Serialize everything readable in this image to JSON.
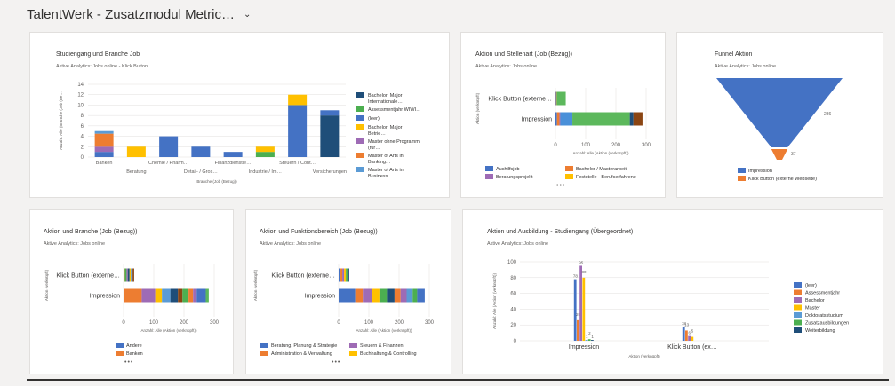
{
  "header": {
    "title": "TalentWerk - Zusatzmodul Metric…",
    "chevron_icon": "chevron-down-icon"
  },
  "cards": {
    "c1": {
      "title": "Studiengang und Branche Job",
      "subtitle": "Aktive Analytics: Jobs online - Klick Button"
    },
    "c2": {
      "title": "Aktion und Stellenart (Job (Bezug))",
      "subtitle": "Aktive Analytics: Jobs online"
    },
    "c3": {
      "title": "Funnel Aktion",
      "subtitle": "Aktive Analytics: Jobs online"
    },
    "c4": {
      "title": "Aktion und Branche (Job (Bezug))",
      "subtitle": "Aktive Analytics: Jobs online"
    },
    "c5": {
      "title": "Aktion und Funktionsbereich (Job (Bezug))",
      "subtitle": "Aktive Analytics: Jobs online"
    },
    "c6": {
      "title": "Aktion und Ausbildung - Studiengang (Übergeordnet)",
      "subtitle": "Aktive Analytics: Jobs online"
    }
  },
  "chart_data": [
    {
      "id": "c1",
      "type": "bar",
      "stacked": true,
      "title": "Studiengang und Branche Job",
      "xlabel": "Branche (Job (Bezug))",
      "ylabel": "Anzahl: Alle (Branche (Job (Be…",
      "ylim": [
        0,
        14
      ],
      "yticks": [
        0,
        2,
        4,
        6,
        8,
        10,
        12,
        14
      ],
      "categories": [
        "Banken",
        "Beratung",
        "Chemie / Pharm…",
        "Detail- / Gros…",
        "Finanzdienstle…",
        "Industrie / Im…",
        "Steuern / Cont…",
        "Versicherungen"
      ],
      "series": [
        {
          "name": "Bachelor: Major Internationale…",
          "color": "#1f4e79",
          "values": [
            0,
            0,
            0,
            0,
            0,
            0,
            0,
            8
          ]
        },
        {
          "name": "Assessmentjahr WIWI…",
          "color": "#4caf50",
          "values": [
            0,
            0,
            0,
            0,
            0,
            1,
            0,
            0
          ]
        },
        {
          "name": "(leer)",
          "color": "#4472c4",
          "values": [
            1,
            0,
            4,
            2,
            1,
            0,
            10,
            1
          ]
        },
        {
          "name": "Bachelor: Major Betrie…",
          "color": "#ffc000",
          "values": [
            0,
            2,
            0,
            0,
            0,
            1,
            2,
            0
          ]
        },
        {
          "name": "Master ohne Programm (für…",
          "color": "#9e6bb5",
          "values": [
            1,
            0,
            0,
            0,
            0,
            0,
            0,
            0
          ]
        },
        {
          "name": "Master of Arts in Banking…",
          "color": "#ed7d31",
          "values": [
            2.5,
            0,
            0,
            0,
            0,
            0,
            0,
            0
          ]
        },
        {
          "name": "Master of Arts in Business…",
          "color": "#5b9bd5",
          "values": [
            0.5,
            0,
            0,
            0,
            0,
            0,
            0,
            0
          ]
        }
      ]
    },
    {
      "id": "c2",
      "type": "bar",
      "orientation": "horizontal",
      "stacked": true,
      "categories": [
        "Klick Button (externe…",
        "Impression"
      ],
      "xlabel": "Anzahl: Alle (Aktion (verknüpft))",
      "ylabel": "Aktion (verknüpft)",
      "xlim": [
        0,
        300
      ],
      "xticks": [
        0,
        100,
        200,
        300
      ],
      "series": [
        {
          "name": "Aushilfsjob",
          "color": "#4472c4",
          "values": [
            2,
            5
          ]
        },
        {
          "name": "Bachelor / Masterarbeit",
          "color": "#ed7d31",
          "values": [
            2,
            8
          ]
        },
        {
          "name": "Beratungsprojekt",
          "color": "#9e6bb5",
          "values": [
            0,
            3
          ]
        },
        {
          "name": "Feststelle - Berufserfahrene",
          "color": "#ffc000",
          "values": [
            0,
            0
          ]
        },
        {
          "name": "",
          "color": "#4a90d9",
          "values": [
            0,
            40
          ]
        },
        {
          "name": "",
          "color": "#5cb85c",
          "values": [
            30,
            190
          ]
        },
        {
          "name": "",
          "color": "#1f4e79",
          "values": [
            0,
            12
          ]
        },
        {
          "name": "",
          "color": "#8b4513",
          "values": [
            0,
            30
          ]
        }
      ]
    },
    {
      "id": "c3",
      "type": "funnel",
      "categories": [
        "Impression",
        "Klick Button (externe Webseite)"
      ],
      "values": [
        286,
        37
      ],
      "colors": [
        "#4472c4",
        "#ed7d31"
      ]
    },
    {
      "id": "c4",
      "type": "bar",
      "orientation": "horizontal",
      "stacked": true,
      "categories": [
        "Klick Button (externe…",
        "Impression"
      ],
      "xlabel": "Anzahl: Alle (Aktion (verknüpft))",
      "ylabel": "Aktion (verknüpft)",
      "xlim": [
        0,
        300
      ],
      "xticks": [
        0,
        100,
        200,
        300
      ],
      "legend": [
        {
          "name": "Andere",
          "color": "#4472c4"
        },
        {
          "name": "Banken",
          "color": "#ed7d31"
        }
      ],
      "segments": [
        [
          [
            "#ed7d31",
            4
          ],
          [
            "#4caf50",
            6
          ],
          [
            "#9e6bb5",
            4
          ],
          [
            "#1f4e79",
            6
          ],
          [
            "#ffc000",
            4
          ],
          [
            "#5b9bd5",
            6
          ],
          [
            "#8b4513",
            5
          ]
        ],
        [
          [
            "#ed7d31",
            60
          ],
          [
            "#9e6bb5",
            45
          ],
          [
            "#ffc000",
            22
          ],
          [
            "#5b9bd5",
            28
          ],
          [
            "#1f4e79",
            25
          ],
          [
            "#8b4513",
            15
          ],
          [
            "#4caf50",
            20
          ],
          [
            "#ed7d31",
            15
          ],
          [
            "#9e6bb5",
            12
          ],
          [
            "#4472c4",
            30
          ],
          [
            "#5cb85c",
            10
          ]
        ]
      ]
    },
    {
      "id": "c5",
      "type": "bar",
      "orientation": "horizontal",
      "stacked": true,
      "categories": [
        "Klick Button (externe…",
        "Impression"
      ],
      "xlabel": "Anzahl: Alle (Aktion (verknüpft))",
      "ylabel": "Aktion (verknüpft)",
      "xlim": [
        0,
        300
      ],
      "xticks": [
        0,
        100,
        200,
        300
      ],
      "legend": [
        {
          "name": "Beratung, Planung & Strategie",
          "color": "#4472c4"
        },
        {
          "name": "Steuern & Finanzen",
          "color": "#9e6bb5"
        },
        {
          "name": "Administration & Verwaltung",
          "color": "#ed7d31"
        },
        {
          "name": "Buchhaltung & Controlling",
          "color": "#ffc000"
        }
      ],
      "segments": [
        [
          [
            "#4472c4",
            6
          ],
          [
            "#ed7d31",
            6
          ],
          [
            "#9e6bb5",
            6
          ],
          [
            "#ffc000",
            6
          ],
          [
            "#4caf50",
            6
          ],
          [
            "#1f4e79",
            5
          ]
        ],
        [
          [
            "#4472c4",
            55
          ],
          [
            "#ed7d31",
            25
          ],
          [
            "#9e6bb5",
            30
          ],
          [
            "#ffc000",
            25
          ],
          [
            "#4caf50",
            25
          ],
          [
            "#1f4e79",
            25
          ],
          [
            "#ed7d31",
            20
          ],
          [
            "#9e6bb5",
            20
          ],
          [
            "#5b9bd5",
            20
          ],
          [
            "#4caf50",
            15
          ],
          [
            "#4472c4",
            25
          ]
        ]
      ]
    },
    {
      "id": "c6",
      "type": "bar",
      "orientation": "vertical",
      "grouped": true,
      "categories": [
        "Impression",
        "Klick Button (ex…"
      ],
      "xlabel": "Aktion (verknüpft)",
      "ylabel": "Anzahl: Alle (Aktion (verknüpft))",
      "ylim": [
        0,
        100
      ],
      "yticks": [
        0,
        20,
        40,
        60,
        80,
        100
      ],
      "series": [
        {
          "name": "(leer)",
          "color": "#4472c4",
          "values": [
            78,
            18
          ]
        },
        {
          "name": "Assessmentjahr",
          "color": "#ed7d31",
          "values": [
            26,
            13
          ]
        },
        {
          "name": "Bachelor",
          "color": "#9e6bb5",
          "values": [
            95,
            6
          ]
        },
        {
          "name": "Master",
          "color": "#ffc000",
          "values": [
            80,
            5
          ]
        },
        {
          "name": "Doktoratsstudium",
          "color": "#5b9bd5",
          "values": [
            1,
            0
          ]
        },
        {
          "name": "Zusatzausbildungen",
          "color": "#4caf50",
          "values": [
            2,
            0
          ]
        },
        {
          "name": "Weiterbildung",
          "color": "#1f4e79",
          "values": [
            1,
            0
          ]
        }
      ],
      "data_labels": [
        [
          "78",
          "18"
        ],
        [
          "26",
          "13"
        ],
        [
          "95",
          "6"
        ],
        [
          "80",
          "5"
        ],
        [
          "1",
          ""
        ],
        [
          "2",
          ""
        ],
        [
          "1",
          ""
        ]
      ]
    }
  ]
}
